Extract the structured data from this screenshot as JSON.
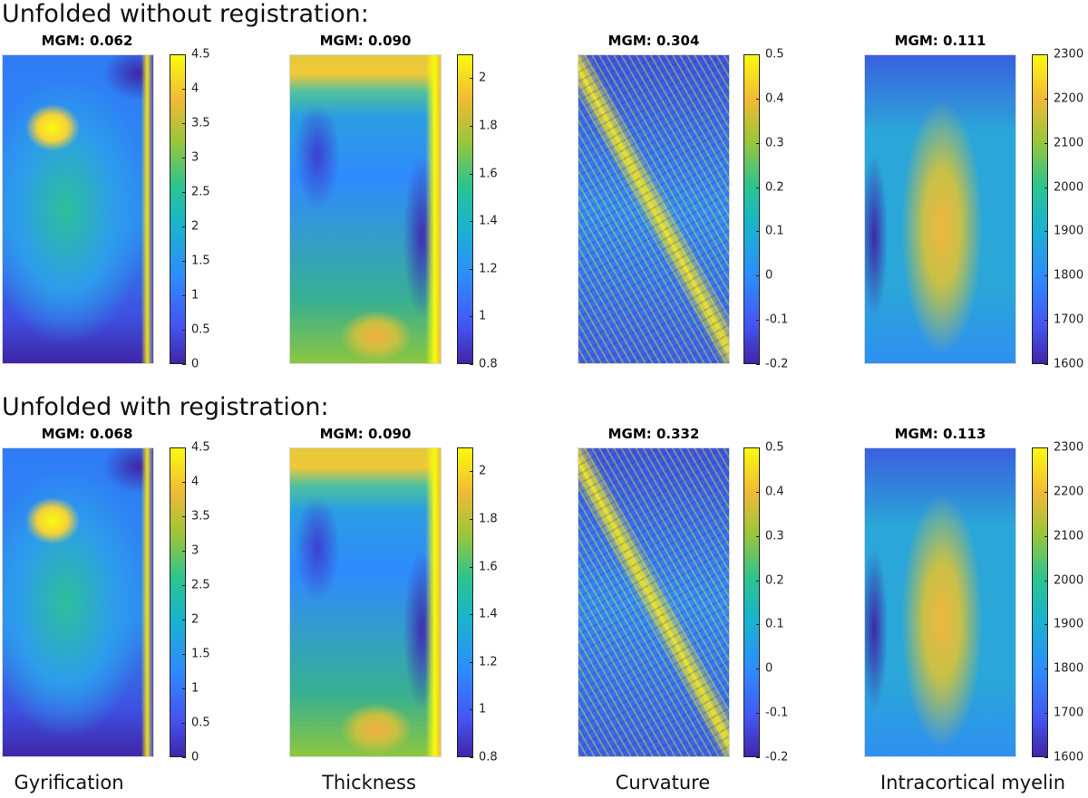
{
  "chart_data": {
    "type": "heatmap",
    "colormap": "parula",
    "row_titles": [
      "Unfolded without registration:",
      "Unfolded with registration:"
    ],
    "column_labels": [
      "Gyrification",
      "Thickness",
      "Curvature",
      "Intracortical myelin"
    ],
    "colorbars": [
      {
        "name": "Gyrification",
        "range": [
          0,
          4.5
        ],
        "ticks": [
          "0",
          "0.5",
          "1",
          "1.5",
          "2",
          "2.5",
          "3",
          "3.5",
          "4",
          "4.5"
        ]
      },
      {
        "name": "Thickness",
        "range": [
          0.8,
          2.1
        ],
        "ticks": [
          "0.8",
          "1",
          "1.2",
          "1.4",
          "1.6",
          "1.8",
          "2"
        ]
      },
      {
        "name": "Curvature",
        "range": [
          -0.2,
          0.5
        ],
        "ticks": [
          "-0.2",
          "-0.1",
          "0",
          "0.1",
          "0.2",
          "0.3",
          "0.4",
          "0.5"
        ]
      },
      {
        "name": "Intracortical myelin",
        "range": [
          1600,
          2300
        ],
        "ticks": [
          "1600",
          "1700",
          "1800",
          "1900",
          "2000",
          "2100",
          "2200",
          "2300"
        ]
      }
    ],
    "panels": [
      {
        "row": 0,
        "col": 0,
        "title": "MGM: 0.062"
      },
      {
        "row": 0,
        "col": 1,
        "title": "MGM: 0.090"
      },
      {
        "row": 0,
        "col": 2,
        "title": "MGM: 0.304"
      },
      {
        "row": 0,
        "col": 3,
        "title": "MGM: 0.111"
      },
      {
        "row": 1,
        "col": 0,
        "title": "MGM: 0.068"
      },
      {
        "row": 1,
        "col": 1,
        "title": "MGM: 0.090"
      },
      {
        "row": 1,
        "col": 2,
        "title": "MGM: 0.332"
      },
      {
        "row": 1,
        "col": 3,
        "title": "MGM: 0.113"
      }
    ]
  }
}
